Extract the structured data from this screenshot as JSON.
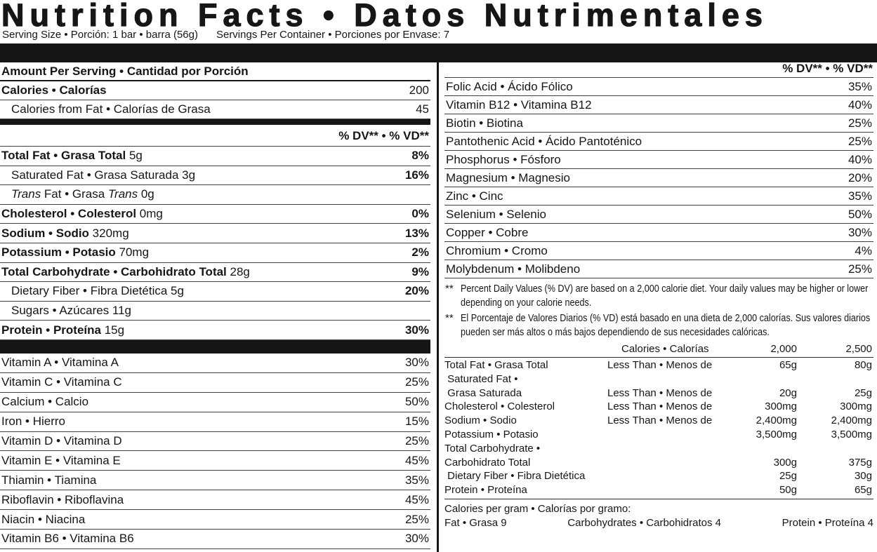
{
  "title": "Nutrition Facts • Datos Nutrimentales",
  "serving": {
    "size": "Serving Size • Porción: 1 bar • barra (56g)",
    "per_container": "Servings Per Container • Porciones por Envase: 7"
  },
  "left": {
    "header": "Amount Per Serving • Cantidad por Porción",
    "calories": {
      "label": "Calories • Calorías",
      "value": "200"
    },
    "calories_fat": {
      "label": "Calories from Fat • Calorías de Grasa",
      "value": "45"
    },
    "dv_header": "% DV** • % VD**",
    "nutrient_rows": [
      {
        "parts": [
          {
            "t": "Total Fat • Grasa Total",
            "b": true
          },
          {
            "t": " 5g"
          }
        ],
        "pct": "8%"
      },
      {
        "indent": true,
        "parts": [
          {
            "t": "Saturated Fat • Grasa Saturada 3g"
          }
        ],
        "pct": "16%"
      },
      {
        "indent": true,
        "parts": [
          {
            "t": "Trans",
            "i": true
          },
          {
            "t": " Fat • Grasa "
          },
          {
            "t": "Trans",
            "i": true
          },
          {
            "t": " 0g"
          }
        ],
        "pct": ""
      },
      {
        "parts": [
          {
            "t": "Cholesterol • Colesterol",
            "b": true
          },
          {
            "t": " 0mg"
          }
        ],
        "pct": "0%"
      },
      {
        "parts": [
          {
            "t": "Sodium • Sodio",
            "b": true
          },
          {
            "t": " 320mg"
          }
        ],
        "pct": "13%"
      },
      {
        "parts": [
          {
            "t": "Potassium • Potasio",
            "b": true
          },
          {
            "t": " 70mg"
          }
        ],
        "pct": "2%"
      },
      {
        "parts": [
          {
            "t": "Total Carbohydrate • Carbohidrato Total",
            "b": true
          },
          {
            "t": " 28g"
          }
        ],
        "pct": "9%"
      },
      {
        "indent": true,
        "parts": [
          {
            "t": "Dietary Fiber • Fibra Dietética 5g"
          }
        ],
        "pct": "20%"
      },
      {
        "indent": true,
        "parts": [
          {
            "t": "Sugars • Azúcares 11g"
          }
        ],
        "pct": ""
      },
      {
        "parts": [
          {
            "t": "Protein • Proteína",
            "b": true
          },
          {
            "t": " 15g"
          }
        ],
        "pct": "30%"
      }
    ],
    "vitamin_rows": [
      {
        "label": "Vitamin A • Vitamina A",
        "pct": "30%"
      },
      {
        "label": "Vitamin C • Vitamina C",
        "pct": "25%"
      },
      {
        "label": "Calcium • Calcio",
        "pct": "50%"
      },
      {
        "label": "Iron • Hierro",
        "pct": "15%"
      },
      {
        "label": "Vitamin D • Vitamina D",
        "pct": "25%"
      },
      {
        "label": "Vitamin E • Vitamina E",
        "pct": "45%"
      },
      {
        "label": "Thiamin • Tiamina",
        "pct": "35%"
      },
      {
        "label": "Riboflavin • Riboflavina",
        "pct": "45%"
      },
      {
        "label": "Niacin • Niacina",
        "pct": "25%"
      },
      {
        "label": "Vitamin B6 • Vitamina B6",
        "pct": "30%"
      }
    ]
  },
  "right": {
    "dv_header": "% DV** • % VD**",
    "vitamin_rows": [
      {
        "label": "Folic Acid • Ácido Fólico",
        "pct": "35%"
      },
      {
        "label": "Vitamin B12 • Vitamina B12",
        "pct": "40%"
      },
      {
        "label": "Biotin • Biotina",
        "pct": "25%"
      },
      {
        "label": "Pantothenic Acid • Ácido Pantoténico",
        "pct": "25%"
      },
      {
        "label": "Phosphorus • Fósforo",
        "pct": "40%"
      },
      {
        "label": "Magnesium • Magnesio",
        "pct": "20%"
      },
      {
        "label": "Zinc • Cinc",
        "pct": "35%"
      },
      {
        "label": "Selenium • Selenio",
        "pct": "50%"
      },
      {
        "label": "Copper • Cobre",
        "pct": "30%"
      },
      {
        "label": "Chromium • Cromo",
        "pct": "4%"
      },
      {
        "label": "Molybdenum • Molibdeno",
        "pct": "25%"
      }
    ],
    "footnotes": [
      {
        "mark": "**",
        "text": "Percent Daily Values (% DV) are based on a 2,000 calorie diet. Your daily values may be higher or lower depending on your calorie needs."
      },
      {
        "mark": "**",
        "text": "El Porcentaje de Valores Diarios (% VD) está basado en una dieta de 2,000 calorías. Sus valores diarios pueden ser más altos o más bajos dependiendo de sus necesidades calóricas."
      }
    ],
    "dv_table": {
      "header": {
        "label": "Calories • Calorías",
        "c2000": "2,000",
        "c2500": "2,500"
      },
      "rows": [
        {
          "lines": [
            "Total Fat • Grasa Total"
          ],
          "method": "Less Than • Menos de",
          "v2000": "65g",
          "v2500": "80g"
        },
        {
          "lines": [
            " Saturated Fat •",
            " Grasa Saturada"
          ],
          "method": "Less Than • Menos de",
          "v2000": "20g",
          "v2500": "25g"
        },
        {
          "lines": [
            "Cholesterol • Colesterol"
          ],
          "method": "Less Than • Menos de",
          "v2000": "300mg",
          "v2500": "300mg"
        },
        {
          "lines": [
            "Sodium • Sodio"
          ],
          "method": "Less Than • Menos de",
          "v2000": "2,400mg",
          "v2500": "2,400mg"
        },
        {
          "lines": [
            "Potassium • Potasio"
          ],
          "method": "",
          "v2000": "3,500mg",
          "v2500": "3,500mg"
        },
        {
          "lines": [
            "Total Carbohydrate •",
            "Carbohidrato Total"
          ],
          "method": "",
          "v2000": "300g",
          "v2500": "375g"
        },
        {
          "lines": [
            " Dietary Fiber • Fibra Dietética"
          ],
          "method": "",
          "v2000": "25g",
          "v2500": "30g"
        },
        {
          "lines": [
            "Protein • Proteína"
          ],
          "method": "",
          "v2000": "50g",
          "v2500": "65g"
        }
      ]
    },
    "calories_per_gram": {
      "title": "Calories per gram • Calorías por gramo:",
      "fat": "Fat • Grasa 9",
      "carbs": "Carbohydrates • Carbohidratos 4",
      "protein": "Protein • Proteína 4"
    }
  }
}
